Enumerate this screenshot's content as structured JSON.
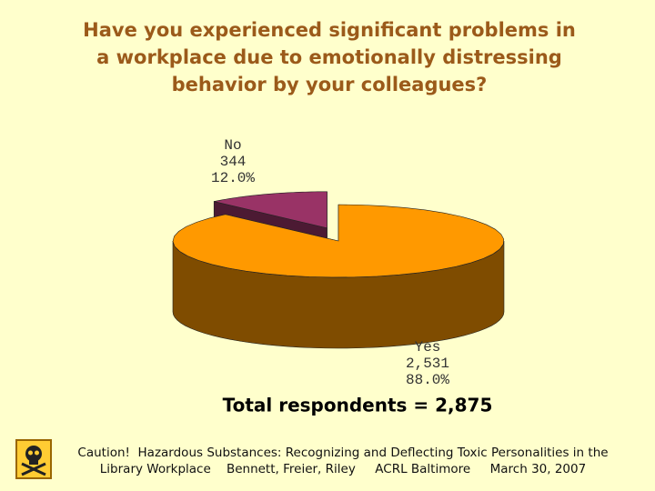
{
  "chart_data": {
    "type": "pie",
    "title": [
      "Have you experienced significant problems in",
      "a workplace due to emotionally distressing",
      "behavior by your colleagues?"
    ],
    "categories": [
      "Yes",
      "No"
    ],
    "values": [
      2531,
      344
    ],
    "value_labels": [
      "2,531",
      "344"
    ],
    "percents": [
      88.0,
      12.0
    ],
    "percent_labels": [
      "88.0%",
      "12.0%"
    ],
    "colors": [
      "#ff9900",
      "#993366"
    ],
    "side_colors": [
      "#7f4c00",
      "#4c1a33"
    ],
    "exploded": [
      false,
      true
    ],
    "total_label": "Total respondents = 2,875",
    "footer": [
      "Caution!  Hazardous Substances: Recognizing and Deflecting Toxic Personalities in the",
      "Library Workplace    Bennett, Freier, Riley     ACRL Baltimore     March 30, 2007"
    ]
  }
}
